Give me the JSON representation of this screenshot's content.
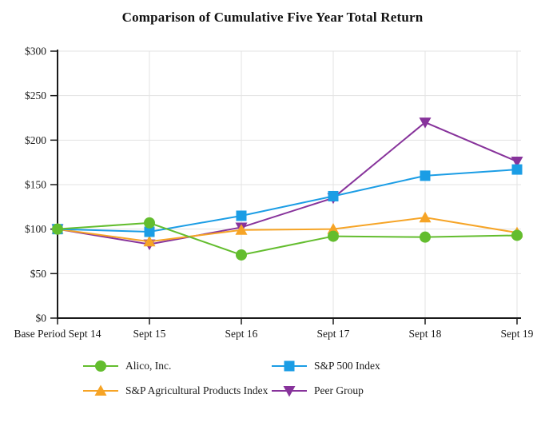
{
  "chart_data": {
    "type": "line",
    "title": "Comparison of Cumulative Five Year Total Return",
    "categories": [
      "Base Period Sept 14",
      "Sept 15",
      "Sept 16",
      "Sept 17",
      "Sept 18",
      "Sept 19"
    ],
    "series": [
      {
        "name": "Alico, Inc.",
        "marker": "circle",
        "color": "#63bd2e",
        "values": [
          100,
          107,
          71,
          92,
          91,
          93
        ]
      },
      {
        "name": "S&P 500 Index",
        "marker": "square",
        "color": "#1b9de5",
        "values": [
          100,
          97,
          115,
          137,
          160,
          167
        ]
      },
      {
        "name": "S&P Agricultural Products Index",
        "marker": "triangle-up",
        "color": "#f6a426",
        "values": [
          100,
          86,
          99,
          100,
          113,
          96
        ]
      },
      {
        "name": "Peer Group",
        "marker": "triangle-down",
        "color": "#87339b",
        "values": [
          100,
          83,
          102,
          135,
          220,
          176
        ]
      }
    ],
    "xlabel": "",
    "ylabel": "",
    "ylim": [
      0,
      300
    ],
    "y_ticks": [
      {
        "value": 0,
        "label": "$0"
      },
      {
        "value": 50,
        "label": "$50"
      },
      {
        "value": 100,
        "label": "$100"
      },
      {
        "value": 150,
        "label": "$150"
      },
      {
        "value": 200,
        "label": "$200"
      },
      {
        "value": 250,
        "label": "$250"
      },
      {
        "value": 300,
        "label": "$300"
      }
    ],
    "grid": true,
    "grid_color": "#e3e3e3",
    "axis_color": "#1a1a1a",
    "legend_position": "bottom"
  }
}
